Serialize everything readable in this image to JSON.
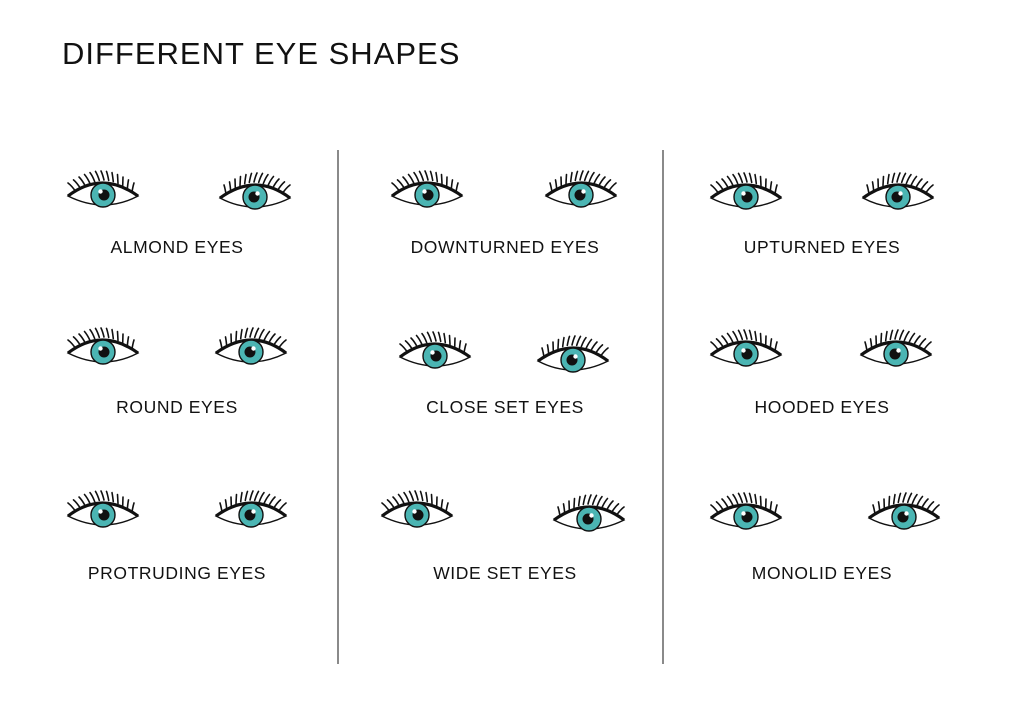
{
  "title": "DIFFERENT EYE SHAPES",
  "colors": {
    "iris": "#4bb5b3",
    "outline": "#111111",
    "divider": "#8a8a8a"
  },
  "shapes": [
    {
      "label": "ALMOND EYES"
    },
    {
      "label": "DOWNTURNED EYES"
    },
    {
      "label": "UPTURNED EYES"
    },
    {
      "label": "ROUND EYES"
    },
    {
      "label": "CLOSE SET EYES"
    },
    {
      "label": "HOODED EYES"
    },
    {
      "label": "PROTRUDING EYES"
    },
    {
      "label": "WIDE SET EYES"
    },
    {
      "label": "MONOLID EYES"
    }
  ]
}
